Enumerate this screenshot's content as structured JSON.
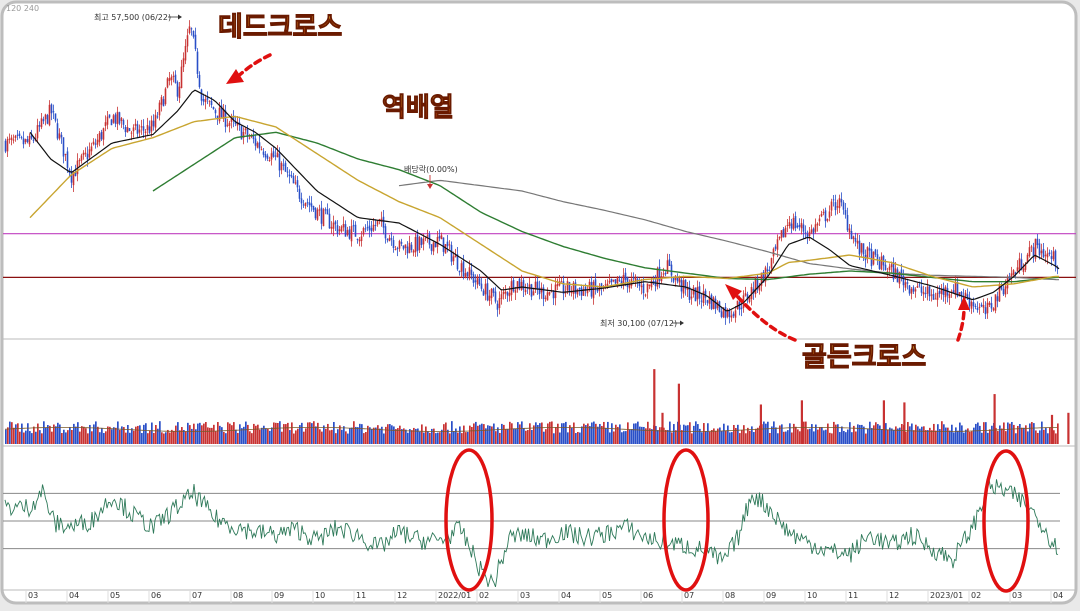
{
  "chart_data": {
    "type": "candlestick",
    "header_label": "120  240",
    "price_range": [
      29000,
      59000
    ],
    "volume_range": [
      0,
      100
    ],
    "rsi_range": [
      0,
      100
    ],
    "months": [
      "03",
      "04",
      "05",
      "06",
      "07",
      "08",
      "09",
      "10",
      "11",
      "12",
      "2022/01",
      "02",
      "03",
      "04",
      "05",
      "06",
      "07",
      "08",
      "09",
      "10",
      "11",
      "12",
      "2023/01",
      "02",
      "03",
      "04"
    ],
    "price_anchors": [
      [
        0,
        47000
      ],
      [
        0.5,
        50000
      ],
      [
        1,
        44000
      ],
      [
        1.6,
        47000
      ],
      [
        2,
        49500
      ],
      [
        2.5,
        48000
      ],
      [
        3,
        48500
      ],
      [
        3.4,
        53000
      ],
      [
        3.6,
        52000
      ],
      [
        3.9,
        58000
      ],
      [
        4.2,
        51000
      ],
      [
        5,
        48500
      ],
      [
        5.5,
        47000
      ],
      [
        6,
        45500
      ],
      [
        6.5,
        42500
      ],
      [
        7,
        40500
      ],
      [
        7.5,
        39000
      ],
      [
        8,
        38500
      ],
      [
        8.5,
        39500
      ],
      [
        9,
        37200
      ],
      [
        10,
        37800
      ],
      [
        10.5,
        35500
      ],
      [
        11,
        33500
      ],
      [
        11.4,
        32000
      ],
      [
        11.8,
        34000
      ],
      [
        12.5,
        33000
      ],
      [
        13,
        33300
      ],
      [
        14,
        33200
      ],
      [
        14.5,
        34200
      ],
      [
        15,
        33300
      ],
      [
        15.5,
        35500
      ],
      [
        16,
        33000
      ],
      [
        16.5,
        32500
      ],
      [
        17,
        31000
      ],
      [
        17.4,
        32200
      ],
      [
        18,
        35200
      ],
      [
        18.5,
        39800
      ],
      [
        19,
        38500
      ],
      [
        19.7,
        41600
      ],
      [
        20.2,
        37000
      ],
      [
        21,
        35000
      ],
      [
        21.5,
        33500
      ],
      [
        22,
        32600
      ],
      [
        22.5,
        33500
      ],
      [
        23,
        32000
      ],
      [
        23.3,
        31000
      ],
      [
        23.8,
        34000
      ],
      [
        24.5,
        37300
      ],
      [
        25,
        36000
      ],
      [
        25.5,
        34500
      ],
      [
        26,
        33400
      ],
      [
        26.4,
        35000
      ]
    ],
    "ma_short_anchors": [
      [
        0,
        48000
      ],
      [
        0.5,
        45500
      ],
      [
        1,
        44200
      ],
      [
        2,
        47000
      ],
      [
        3,
        47800
      ],
      [
        3.6,
        50000
      ],
      [
        4,
        52000
      ],
      [
        4.5,
        51000
      ],
      [
        5,
        49000
      ],
      [
        5.5,
        48000
      ],
      [
        6,
        46500
      ],
      [
        7,
        42500
      ],
      [
        8,
        40000
      ],
      [
        9,
        39500
      ],
      [
        10,
        37500
      ],
      [
        11,
        35000
      ],
      [
        11.5,
        33200
      ],
      [
        12,
        33500
      ],
      [
        13,
        33000
      ],
      [
        14,
        33400
      ],
      [
        15,
        34000
      ],
      [
        16,
        33500
      ],
      [
        16.5,
        32700
      ],
      [
        17,
        31200
      ],
      [
        17.4,
        32000
      ],
      [
        18,
        34500
      ],
      [
        18.5,
        37500
      ],
      [
        19,
        38200
      ],
      [
        19.5,
        37000
      ],
      [
        20,
        35500
      ],
      [
        21,
        34600
      ],
      [
        22,
        33600
      ],
      [
        23,
        32300
      ],
      [
        23.5,
        33000
      ],
      [
        24,
        34500
      ],
      [
        24.5,
        36500
      ],
      [
        25,
        35500
      ],
      [
        25.5,
        34000
      ],
      [
        26,
        33000
      ],
      [
        26.4,
        34000
      ]
    ],
    "ma_mid_anchors": [
      [
        0,
        40000
      ],
      [
        1,
        44000
      ],
      [
        2,
        46500
      ],
      [
        3,
        47500
      ],
      [
        4,
        49000
      ],
      [
        5,
        49500
      ],
      [
        6,
        48500
      ],
      [
        7,
        46000
      ],
      [
        8,
        43500
      ],
      [
        9,
        41500
      ],
      [
        10,
        40000
      ],
      [
        11,
        37500
      ],
      [
        12,
        35000
      ],
      [
        13,
        33800
      ],
      [
        14,
        33500
      ],
      [
        15,
        34200
      ],
      [
        16,
        34500
      ],
      [
        17,
        34300
      ],
      [
        18,
        34800
      ],
      [
        18.5,
        35800
      ],
      [
        19,
        36000
      ],
      [
        20,
        36500
      ],
      [
        21,
        35800
      ],
      [
        22,
        34500
      ],
      [
        23,
        33500
      ],
      [
        24,
        33800
      ],
      [
        25,
        34500
      ],
      [
        26,
        34300
      ],
      [
        26.4,
        34200
      ]
    ],
    "ma_long_anchors": [
      [
        3,
        42500
      ],
      [
        4,
        45000
      ],
      [
        5,
        47500
      ],
      [
        6,
        48000
      ],
      [
        7,
        47000
      ],
      [
        8,
        45500
      ],
      [
        9,
        44500
      ],
      [
        10,
        43000
      ],
      [
        11,
        40500
      ],
      [
        12,
        38700
      ],
      [
        13,
        37300
      ],
      [
        14,
        36200
      ],
      [
        15,
        35300
      ],
      [
        16,
        34800
      ],
      [
        17,
        34300
      ],
      [
        18,
        34200
      ],
      [
        19,
        34700
      ],
      [
        20,
        35000
      ],
      [
        21,
        34800
      ],
      [
        22,
        34400
      ],
      [
        23,
        34000
      ],
      [
        24,
        34000
      ],
      [
        25,
        34400
      ],
      [
        26,
        34500
      ],
      [
        26.4,
        34400
      ]
    ],
    "ma_xlong_anchors": [
      [
        9,
        43000
      ],
      [
        10,
        43500
      ],
      [
        11,
        43000
      ],
      [
        12,
        42500
      ],
      [
        13,
        41500
      ],
      [
        14,
        40700
      ],
      [
        15,
        39800
      ],
      [
        16,
        38700
      ],
      [
        17,
        37800
      ],
      [
        18,
        36800
      ],
      [
        19,
        35700
      ],
      [
        20,
        35200
      ],
      [
        21,
        34800
      ],
      [
        22,
        34600
      ],
      [
        23,
        34500
      ],
      [
        24,
        34400
      ],
      [
        25,
        34200
      ],
      [
        26,
        34000
      ],
      [
        26.4,
        33900
      ]
    ],
    "hlines": [
      {
        "price": 38500,
        "color": "#c040c0"
      },
      {
        "price": 34400,
        "color": "#8a1010"
      }
    ],
    "volume_spikes": [
      [
        15.2,
        72
      ],
      [
        15.8,
        58
      ],
      [
        17.8,
        38
      ],
      [
        18.8,
        42
      ],
      [
        20.8,
        42
      ],
      [
        21.3,
        40
      ],
      [
        23.5,
        48
      ],
      [
        15.4,
        30
      ],
      [
        24.9,
        28
      ],
      [
        25.3,
        30
      ],
      [
        26.2,
        22
      ]
    ],
    "rsi_anchors": [
      [
        0,
        60
      ],
      [
        0.3,
        72
      ],
      [
        0.6,
        48
      ],
      [
        1,
        46
      ],
      [
        1.5,
        50
      ],
      [
        2,
        68
      ],
      [
        2.5,
        55
      ],
      [
        3,
        45
      ],
      [
        3.5,
        58
      ],
      [
        4,
        70
      ],
      [
        4.5,
        52
      ],
      [
        5,
        46
      ],
      [
        5.5,
        42
      ],
      [
        6,
        40
      ],
      [
        6.5,
        44
      ],
      [
        7,
        36
      ],
      [
        7.5,
        45
      ],
      [
        8,
        40
      ],
      [
        8.5,
        30
      ],
      [
        9,
        42
      ],
      [
        9.5,
        36
      ],
      [
        10,
        36
      ],
      [
        10.5,
        44
      ],
      [
        11,
        14
      ],
      [
        11.3,
        4
      ],
      [
        11.7,
        38
      ],
      [
        12,
        40
      ],
      [
        12.5,
        36
      ],
      [
        13,
        42
      ],
      [
        13.5,
        38
      ],
      [
        14,
        40
      ],
      [
        14.5,
        46
      ],
      [
        15,
        38
      ],
      [
        15.5,
        34
      ],
      [
        16,
        32
      ],
      [
        16.5,
        28
      ],
      [
        16.9,
        20
      ],
      [
        17.3,
        40
      ],
      [
        17.6,
        70
      ],
      [
        18,
        60
      ],
      [
        18.5,
        42
      ],
      [
        19,
        34
      ],
      [
        19.5,
        28
      ],
      [
        20,
        26
      ],
      [
        20.5,
        40
      ],
      [
        21,
        32
      ],
      [
        21.5,
        40
      ],
      [
        22,
        30
      ],
      [
        22.5,
        22
      ],
      [
        23,
        46
      ],
      [
        23.4,
        75
      ],
      [
        23.8,
        72
      ],
      [
        24.2,
        64
      ],
      [
        24.6,
        52
      ],
      [
        25,
        32
      ],
      [
        25.5,
        26
      ],
      [
        25.9,
        32
      ],
      [
        26.4,
        50
      ]
    ],
    "rsi_levels": [
      70,
      50,
      30
    ],
    "labels": {
      "high": "최고 57,500 (06/22)",
      "low": "최저 30,100 (07/12)",
      "dividend": "배당락(0.00%)"
    },
    "annotations": {
      "dead_cross": "데드크로스",
      "reverse": "역배열",
      "golden_cross": "골든크로스"
    },
    "colors": {
      "up": "#c83232",
      "down": "#2a4fc8",
      "ma_short": "#111111",
      "ma_mid": "#c8a530",
      "ma_long": "#2e7d32",
      "ma_xlong": "#777777",
      "rsi": "#2f7a5a",
      "circle": "#e01010"
    }
  }
}
